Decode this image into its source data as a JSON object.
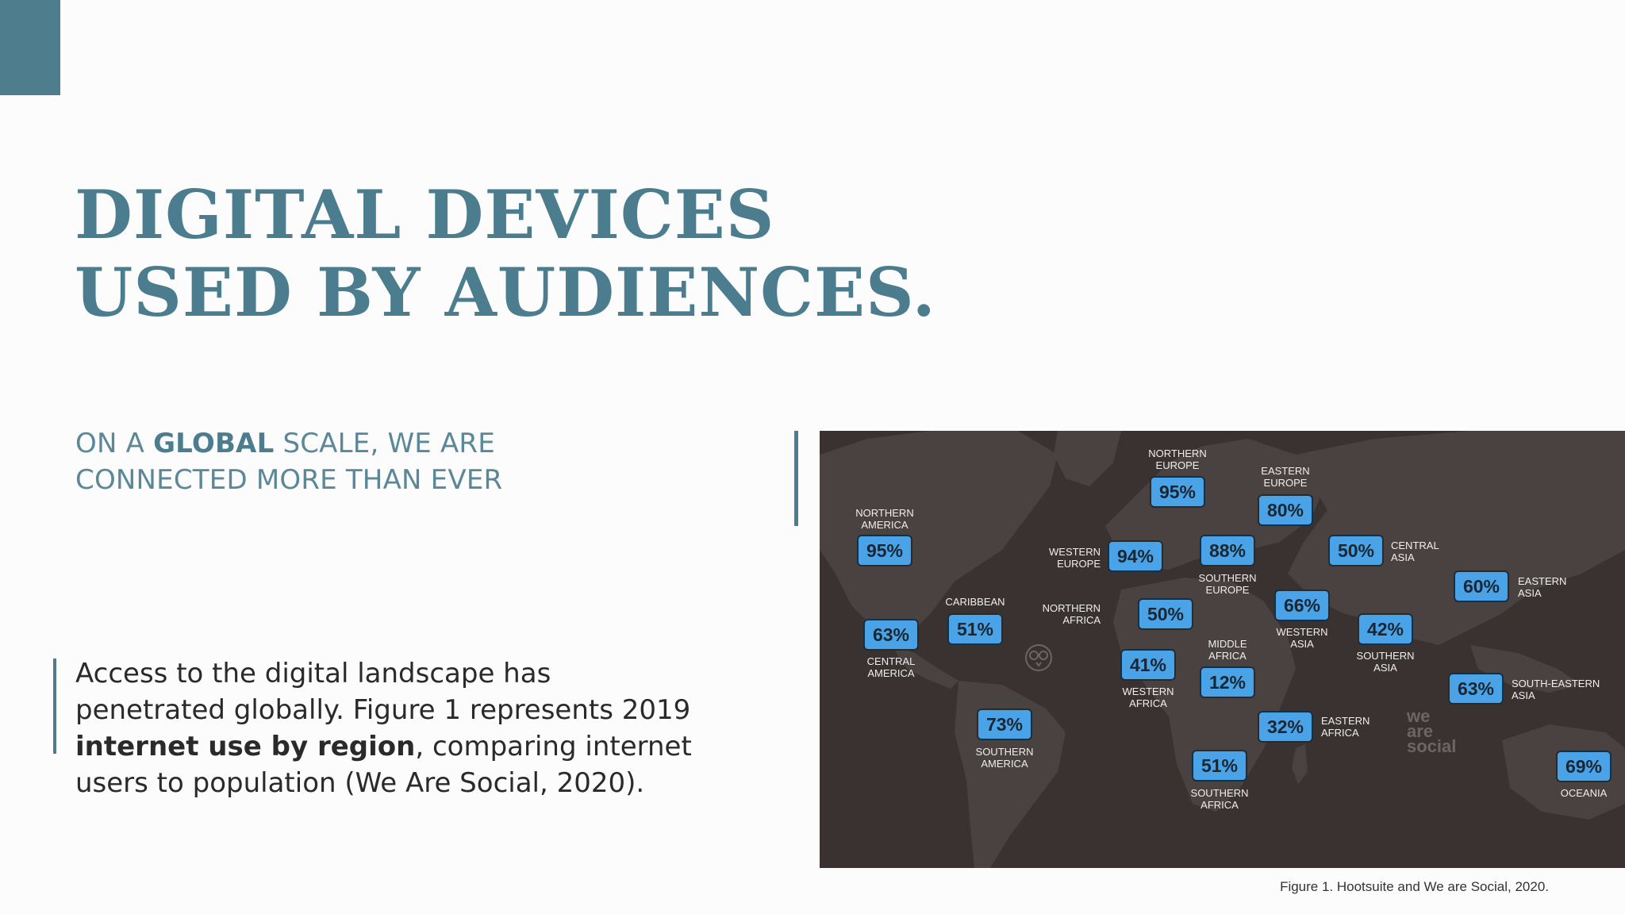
{
  "title": {
    "line1": "DIGITAL DEVICES",
    "line2": "USED BY AUDIENCES."
  },
  "subtitle": {
    "line1_pre": "ON A ",
    "line1_bold": "GLOBAL",
    "line1_post": " SCALE, WE ARE",
    "line2": "CONNECTED MORE THAN EVER"
  },
  "body": {
    "line1": "Access to the digital landscape has",
    "line2": "penetrated globally. Figure 1 represents 2019",
    "line3_bold": "internet use by region",
    "line3_post": ", comparing internet",
    "line4": "users to population (We Are Social, 2020)."
  },
  "map": {
    "regions": [
      {
        "id": "northern-america",
        "label": [
          "NORTHERN",
          "AMERICA"
        ],
        "value": "95%"
      },
      {
        "id": "central-america",
        "label": [
          "CENTRAL",
          "AMERICA"
        ],
        "value": "63%"
      },
      {
        "id": "caribbean",
        "label": [
          "CARIBBEAN"
        ],
        "value": "51%"
      },
      {
        "id": "southern-america",
        "label": [
          "SOUTHERN",
          "AMERICA"
        ],
        "value": "73%"
      },
      {
        "id": "northern-europe",
        "label": [
          "NORTHERN",
          "EUROPE"
        ],
        "value": "95%"
      },
      {
        "id": "eastern-europe",
        "label": [
          "EASTERN",
          "EUROPE"
        ],
        "value": "80%"
      },
      {
        "id": "western-europe",
        "label": [
          "WESTERN",
          "EUROPE"
        ],
        "value": "94%"
      },
      {
        "id": "southern-europe",
        "label": [
          "SOUTHERN",
          "EUROPE"
        ],
        "value": "88%"
      },
      {
        "id": "northern-africa",
        "label": [
          "NORTHERN",
          "AFRICA"
        ],
        "value": "50%"
      },
      {
        "id": "western-africa",
        "label": [
          "WESTERN",
          "AFRICA"
        ],
        "value": "41%"
      },
      {
        "id": "middle-africa",
        "label": [
          "MIDDLE",
          "AFRICA"
        ],
        "value": "12%"
      },
      {
        "id": "eastern-africa",
        "label": [
          "EASTERN",
          "AFRICA"
        ],
        "value": "32%"
      },
      {
        "id": "southern-africa",
        "label": [
          "SOUTHERN",
          "AFRICA"
        ],
        "value": "51%"
      },
      {
        "id": "western-asia",
        "label": [
          "WESTERN",
          "ASIA"
        ],
        "value": "66%"
      },
      {
        "id": "central-asia",
        "label": [
          "CENTRAL",
          "ASIA"
        ],
        "value": "50%"
      },
      {
        "id": "southern-asia",
        "label": [
          "SOUTHERN",
          "ASIA"
        ],
        "value": "42%"
      },
      {
        "id": "eastern-asia",
        "label": [
          "EASTERN",
          "ASIA"
        ],
        "value": "60%"
      },
      {
        "id": "south-eastern-asia",
        "label": [
          "SOUTH-EASTERN",
          "ASIA"
        ],
        "value": "63%"
      },
      {
        "id": "oceania",
        "label": [
          "OCEANIA"
        ],
        "value": "69%"
      }
    ],
    "watermark": [
      "we",
      "are",
      "social"
    ],
    "owl_icon": "hootsuite-owl-icon"
  },
  "caption": "Figure 1. Hootsuite and We are Social, 2020."
}
